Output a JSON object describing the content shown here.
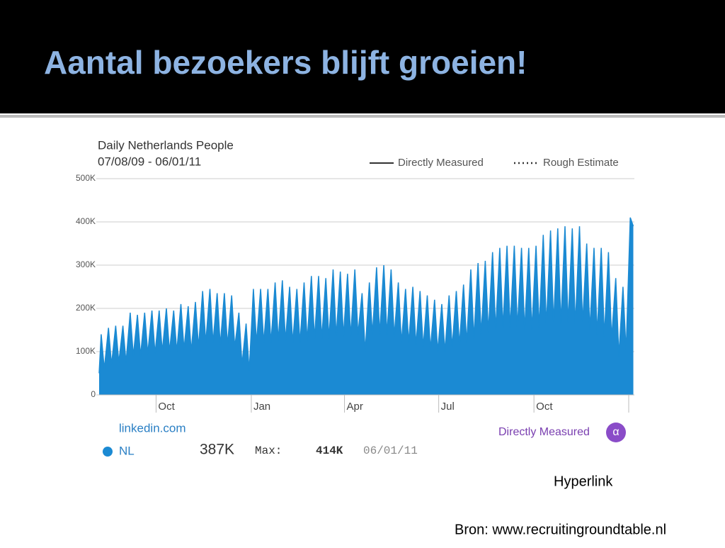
{
  "slide": {
    "title": "Aantal bezoekers blijft groeien!",
    "hyperlink": "Hyperlink",
    "source": "Bron: www.recruitingroundtable.nl"
  },
  "chart_data": {
    "type": "area",
    "title": "Daily Netherlands People",
    "subtitle": "07/08/09 - 06/01/11",
    "legend": [
      "Directly Measured",
      "Rough Estimate"
    ],
    "xlim": [
      0,
      517
    ],
    "xticks": [
      {
        "value": 55,
        "label": "Oct"
      },
      {
        "value": 147,
        "label": "Jan"
      },
      {
        "value": 237,
        "label": "Apr"
      },
      {
        "value": 328,
        "label": "Jul"
      },
      {
        "value": 420,
        "label": "Oct"
      }
    ],
    "ylim": [
      0,
      500
    ],
    "yticks": [
      0,
      {
        "value": 100,
        "label": "100K"
      },
      {
        "value": 200,
        "label": "200K"
      },
      {
        "value": 300,
        "label": "300K"
      },
      {
        "value": 400,
        "label": "400K"
      },
      {
        "value": 500,
        "label": "500K"
      }
    ],
    "grid": true,
    "x": [
      0,
      2,
      5,
      9,
      12,
      16,
      19,
      23,
      26,
      30,
      33,
      37,
      40,
      44,
      47,
      51,
      54,
      58,
      61,
      65,
      68,
      72,
      75,
      79,
      82,
      86,
      89,
      93,
      96,
      100,
      103,
      107,
      110,
      114,
      117,
      121,
      124,
      128,
      131,
      135,
      138,
      142,
      145,
      149,
      152,
      156,
      159,
      163,
      166,
      170,
      173,
      177,
      180,
      184,
      187,
      191,
      194,
      198,
      201,
      205,
      208,
      212,
      215,
      219,
      222,
      226,
      229,
      233,
      236,
      240,
      243,
      247,
      250,
      254,
      257,
      261,
      264,
      268,
      271,
      275,
      278,
      282,
      285,
      289,
      292,
      296,
      299,
      303,
      306,
      310,
      313,
      317,
      320,
      324,
      327,
      331,
      334,
      338,
      341,
      345,
      348,
      352,
      355,
      359,
      362,
      366,
      369,
      373,
      376,
      380,
      383,
      387,
      390,
      394,
      397,
      401,
      404,
      408,
      411,
      415,
      418,
      422,
      425,
      429,
      432,
      436,
      439,
      443,
      446,
      450,
      453,
      457,
      460,
      464,
      467,
      471,
      474,
      478,
      481,
      485,
      488,
      492,
      495,
      499,
      502,
      506,
      509,
      513,
      516
    ],
    "series": [
      {
        "name": "NL",
        "color": "#1b8ad3",
        "values": [
          50,
          140,
          60,
          155,
          70,
          160,
          75,
          160,
          75,
          190,
          90,
          185,
          90,
          190,
          95,
          195,
          95,
          195,
          100,
          200,
          100,
          195,
          100,
          210,
          105,
          205,
          100,
          215,
          110,
          240,
          120,
          245,
          120,
          235,
          115,
          235,
          115,
          230,
          110,
          190,
          70,
          165,
          55,
          245,
          120,
          245,
          120,
          245,
          120,
          260,
          125,
          265,
          125,
          250,
          120,
          245,
          120,
          260,
          125,
          275,
          130,
          275,
          130,
          270,
          130,
          290,
          135,
          285,
          135,
          280,
          135,
          290,
          140,
          235,
          100,
          260,
          140,
          295,
          140,
          300,
          140,
          290,
          135,
          260,
          120,
          245,
          120,
          250,
          115,
          240,
          110,
          230,
          105,
          220,
          100,
          210,
          100,
          230,
          110,
          240,
          115,
          255,
          120,
          290,
          130,
          305,
          140,
          310,
          145,
          330,
          150,
          340,
          155,
          345,
          155,
          345,
          155,
          340,
          150,
          340,
          150,
          345,
          155,
          370,
          160,
          380,
          165,
          385,
          165,
          390,
          165,
          385,
          160,
          390,
          165,
          350,
          150,
          340,
          140,
          340,
          135,
          330,
          130,
          270,
          90,
          250,
          100,
          410,
          390
        ]
      }
    ]
  },
  "stats": {
    "site": "linkedin.com",
    "current": "387K",
    "max_label": "Max:",
    "max": "414K",
    "max_date": "06/01/11",
    "badge": "Directly Measured",
    "badge_icon": "α"
  }
}
